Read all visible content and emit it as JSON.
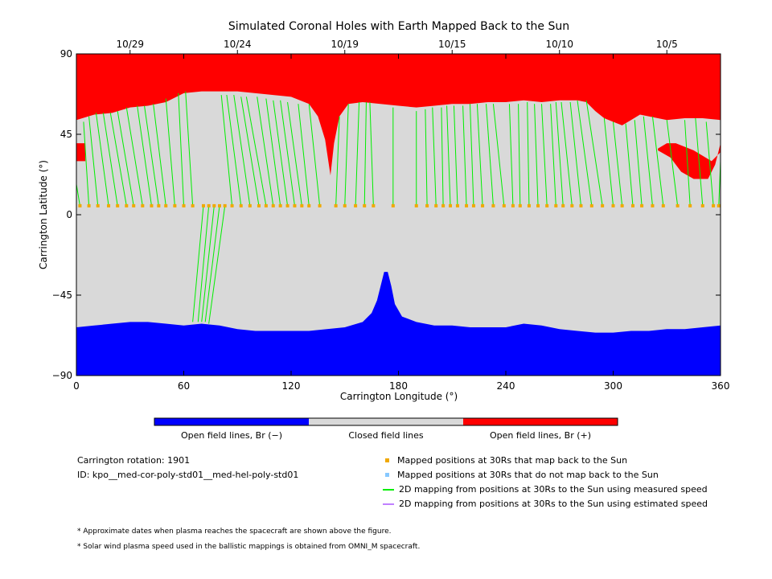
{
  "chart_data": {
    "type": "area",
    "title": "Simulated Coronal Holes with Earth Mapped Back to the Sun",
    "xlabel": "Carrington Longitude (°)",
    "ylabel": "Carrington Latitude (°)",
    "xlim": [
      0,
      360
    ],
    "ylim": [
      -90,
      90
    ],
    "xticks": [
      0,
      60,
      120,
      180,
      240,
      300,
      360
    ],
    "yticks": [
      -90,
      -45,
      0,
      45,
      90
    ],
    "top_axis_dates": [
      {
        "label": "10/29",
        "lon": 30
      },
      {
        "label": "10/24",
        "lon": 90
      },
      {
        "label": "10/19",
        "lon": 150
      },
      {
        "label": "10/15",
        "lon": 210
      },
      {
        "label": "10/10",
        "lon": 270
      },
      {
        "label": "10/5",
        "lon": 330
      }
    ],
    "colors": {
      "open_negative": "#0000ff",
      "closed": "#d9d9d9",
      "open_positive": "#ff0000",
      "mapped_point": "#f0a800",
      "unmapped_point": "#87c8ff",
      "measured_line": "#00ee00",
      "estimated_line": "#c080ff"
    },
    "north_boundary": [
      [
        0,
        53
      ],
      [
        10,
        56
      ],
      [
        20,
        57
      ],
      [
        30,
        60
      ],
      [
        40,
        61
      ],
      [
        50,
        63
      ],
      [
        60,
        68
      ],
      [
        70,
        69
      ],
      [
        80,
        69
      ],
      [
        90,
        69
      ],
      [
        100,
        68
      ],
      [
        110,
        67
      ],
      [
        120,
        66
      ],
      [
        130,
        62
      ],
      [
        135,
        55
      ],
      [
        139,
        42
      ],
      [
        142,
        22
      ],
      [
        144,
        40
      ],
      [
        147,
        55
      ],
      [
        152,
        62
      ],
      [
        160,
        63
      ],
      [
        170,
        62
      ],
      [
        180,
        61
      ],
      [
        190,
        60
      ],
      [
        200,
        61
      ],
      [
        210,
        62
      ],
      [
        220,
        62
      ],
      [
        230,
        63
      ],
      [
        240,
        63
      ],
      [
        250,
        64
      ],
      [
        260,
        63
      ],
      [
        270,
        64
      ],
      [
        280,
        64
      ],
      [
        285,
        63
      ],
      [
        290,
        58
      ],
      [
        295,
        54
      ],
      [
        300,
        52
      ],
      [
        305,
        50
      ],
      [
        310,
        53
      ],
      [
        315,
        56
      ],
      [
        320,
        55
      ],
      [
        330,
        53
      ],
      [
        340,
        54
      ],
      [
        350,
        54
      ],
      [
        360,
        53
      ]
    ],
    "north_positive_patches": [
      {
        "points": [
          [
            0,
            40
          ],
          [
            5,
            40
          ],
          [
            5,
            30
          ],
          [
            0,
            30
          ]
        ]
      },
      {
        "points": [
          [
            325,
            37
          ],
          [
            330,
            40
          ],
          [
            335,
            40
          ],
          [
            345,
            36
          ],
          [
            355,
            30
          ],
          [
            360,
            35
          ],
          [
            360,
            40
          ],
          [
            357,
            28
          ],
          [
            353,
            20
          ],
          [
            345,
            20
          ],
          [
            338,
            24
          ],
          [
            332,
            32
          ],
          [
            325,
            36
          ]
        ]
      }
    ],
    "south_boundary": [
      [
        0,
        -63
      ],
      [
        10,
        -62
      ],
      [
        20,
        -61
      ],
      [
        30,
        -60
      ],
      [
        40,
        -60
      ],
      [
        50,
        -61
      ],
      [
        60,
        -62
      ],
      [
        70,
        -61
      ],
      [
        80,
        -62
      ],
      [
        90,
        -64
      ],
      [
        100,
        -65
      ],
      [
        110,
        -65
      ],
      [
        120,
        -65
      ],
      [
        130,
        -65
      ],
      [
        140,
        -64
      ],
      [
        150,
        -63
      ],
      [
        160,
        -60
      ],
      [
        165,
        -55
      ],
      [
        168,
        -48
      ],
      [
        170,
        -40
      ],
      [
        172,
        -32
      ],
      [
        174,
        -32
      ],
      [
        176,
        -40
      ],
      [
        178,
        -50
      ],
      [
        182,
        -57
      ],
      [
        190,
        -60
      ],
      [
        200,
        -62
      ],
      [
        210,
        -62
      ],
      [
        220,
        -63
      ],
      [
        230,
        -63
      ],
      [
        240,
        -63
      ],
      [
        250,
        -61
      ],
      [
        260,
        -62
      ],
      [
        270,
        -64
      ],
      [
        280,
        -65
      ],
      [
        290,
        -66
      ],
      [
        300,
        -66
      ],
      [
        310,
        -65
      ],
      [
        320,
        -65
      ],
      [
        330,
        -64
      ],
      [
        340,
        -64
      ],
      [
        350,
        -63
      ],
      [
        360,
        -62
      ]
    ],
    "mapped_points": [
      [
        2,
        5
      ],
      [
        7,
        5
      ],
      [
        12,
        5
      ],
      [
        18,
        5
      ],
      [
        23,
        5
      ],
      [
        28,
        5
      ],
      [
        32,
        5
      ],
      [
        37,
        5
      ],
      [
        42,
        5
      ],
      [
        46,
        5
      ],
      [
        50,
        5
      ],
      [
        55,
        5
      ],
      [
        60,
        5
      ],
      [
        65,
        5
      ],
      [
        71,
        5
      ],
      [
        74,
        5
      ],
      [
        77,
        5
      ],
      [
        80,
        5
      ],
      [
        83,
        5
      ],
      [
        87,
        5
      ],
      [
        92,
        5
      ],
      [
        97,
        5
      ],
      [
        102,
        5
      ],
      [
        106,
        5
      ],
      [
        110,
        5
      ],
      [
        114,
        5
      ],
      [
        118,
        5
      ],
      [
        122,
        5
      ],
      [
        126,
        5
      ],
      [
        130,
        5
      ],
      [
        136,
        5
      ],
      [
        145,
        5
      ],
      [
        150,
        5
      ],
      [
        156,
        5
      ],
      [
        161,
        5
      ],
      [
        166,
        5
      ],
      [
        177,
        5
      ],
      [
        190,
        5
      ],
      [
        196,
        5
      ],
      [
        201,
        5
      ],
      [
        205,
        5
      ],
      [
        209,
        5
      ],
      [
        213,
        5
      ],
      [
        218,
        5
      ],
      [
        222,
        5
      ],
      [
        227,
        5
      ],
      [
        233,
        5
      ],
      [
        239,
        5
      ],
      [
        244,
        5
      ],
      [
        248,
        5
      ],
      [
        253,
        5
      ],
      [
        258,
        5
      ],
      [
        263,
        5
      ],
      [
        268,
        5
      ],
      [
        272,
        5
      ],
      [
        277,
        5
      ],
      [
        282,
        5
      ],
      [
        288,
        5
      ],
      [
        294,
        5
      ],
      [
        300,
        5
      ],
      [
        305,
        5
      ],
      [
        311,
        5
      ],
      [
        316,
        5
      ],
      [
        322,
        5
      ],
      [
        328,
        5
      ],
      [
        336,
        5
      ],
      [
        343,
        5
      ],
      [
        350,
        5
      ],
      [
        356,
        5
      ],
      [
        359,
        5
      ]
    ],
    "measured_mappings": [
      [
        2,
        5,
        0,
        17
      ],
      [
        7,
        5,
        4,
        52
      ],
      [
        12,
        5,
        7,
        55
      ],
      [
        18,
        5,
        11,
        57
      ],
      [
        23,
        5,
        15,
        57
      ],
      [
        28,
        5,
        19,
        57
      ],
      [
        32,
        5,
        23,
        58
      ],
      [
        37,
        5,
        28,
        60
      ],
      [
        42,
        5,
        34,
        61
      ],
      [
        46,
        5,
        38,
        61
      ],
      [
        50,
        5,
        43,
        62
      ],
      [
        55,
        5,
        50,
        65
      ],
      [
        60,
        5,
        57,
        68
      ],
      [
        65,
        5,
        61,
        69
      ],
      [
        71,
        5,
        65,
        -60
      ],
      [
        74,
        5,
        68,
        -60
      ],
      [
        77,
        5,
        70,
        -60
      ],
      [
        80,
        5,
        72,
        -60
      ],
      [
        83,
        5,
        74,
        -61
      ],
      [
        87,
        5,
        81,
        67
      ],
      [
        92,
        5,
        84,
        67
      ],
      [
        97,
        5,
        88,
        67
      ],
      [
        102,
        5,
        92,
        66
      ],
      [
        106,
        5,
        95,
        66
      ],
      [
        110,
        5,
        101,
        66
      ],
      [
        114,
        5,
        106,
        65
      ],
      [
        118,
        5,
        110,
        64
      ],
      [
        122,
        5,
        114,
        64
      ],
      [
        126,
        5,
        118,
        63
      ],
      [
        130,
        5,
        124,
        62
      ],
      [
        136,
        5,
        130,
        62
      ],
      [
        145,
        5,
        147,
        55
      ],
      [
        150,
        5,
        152,
        62
      ],
      [
        156,
        5,
        158,
        63
      ],
      [
        161,
        5,
        162,
        63
      ],
      [
        166,
        5,
        164,
        63
      ],
      [
        177,
        5,
        177,
        60
      ],
      [
        190,
        5,
        190,
        58
      ],
      [
        196,
        5,
        195,
        59
      ],
      [
        201,
        5,
        199,
        60
      ],
      [
        205,
        5,
        204,
        60
      ],
      [
        209,
        5,
        207,
        61
      ],
      [
        213,
        5,
        211,
        61
      ],
      [
        218,
        5,
        216,
        61
      ],
      [
        222,
        5,
        220,
        62
      ],
      [
        227,
        5,
        224,
        62
      ],
      [
        233,
        5,
        229,
        62
      ],
      [
        239,
        5,
        233,
        62
      ],
      [
        244,
        5,
        242,
        62
      ],
      [
        248,
        5,
        247,
        62
      ],
      [
        253,
        5,
        252,
        63
      ],
      [
        258,
        5,
        256,
        62
      ],
      [
        263,
        5,
        260,
        62
      ],
      [
        268,
        5,
        265,
        62
      ],
      [
        272,
        5,
        268,
        63
      ],
      [
        277,
        5,
        271,
        63
      ],
      [
        282,
        5,
        276,
        63
      ],
      [
        288,
        5,
        280,
        64
      ],
      [
        294,
        5,
        285,
        64
      ],
      [
        300,
        5,
        295,
        54
      ],
      [
        305,
        5,
        300,
        52
      ],
      [
        311,
        5,
        307,
        51
      ],
      [
        316,
        5,
        312,
        53
      ],
      [
        322,
        5,
        317,
        55
      ],
      [
        328,
        5,
        322,
        55
      ],
      [
        336,
        5,
        330,
        53
      ],
      [
        343,
        5,
        340,
        53
      ],
      [
        350,
        5,
        346,
        54
      ],
      [
        356,
        5,
        352,
        52
      ],
      [
        359,
        5,
        360,
        30
      ]
    ],
    "legend": [
      "Open field lines, Br (−)",
      "Closed field lines",
      "Open field lines, Br (+)"
    ]
  },
  "info": {
    "rotation": "Carrington rotation: 1901",
    "id": "ID: kpo__med-cor-poly-std01__med-hel-poly-std01"
  },
  "key": {
    "mapped": "Mapped positions at 30Rs that map back to the Sun",
    "unmapped": "Mapped positions at 30Rs that do not map back to the Sun",
    "measured": "2D mapping from positions at 30Rs to the Sun using measured speed",
    "estimated": "2D mapping from positions at 30Rs to the Sun using estimated speed"
  },
  "notes": {
    "dates": "* Approximate dates when plasma reaches the spacecraft are shown above the figure.",
    "speed": "* Solar wind plasma speed used in the ballistic mappings is obtained from OMNI_M spacecraft."
  }
}
